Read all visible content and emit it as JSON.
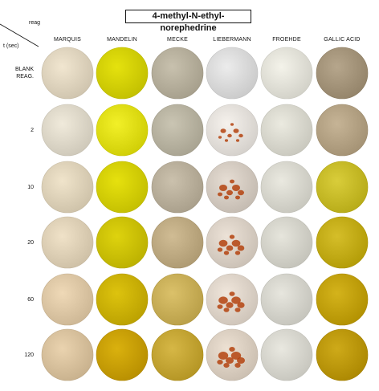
{
  "title": "4-methyl-N-ethyl-norephedrine",
  "corner": {
    "reagent_label": "reag",
    "time_label": "t (sec)"
  },
  "columns": [
    "MARQUIS",
    "MANDELIN",
    "MECKE",
    "LIEBERMANN",
    "FROEHDE",
    "GALLIC ACID"
  ],
  "rows": [
    {
      "label": "BLANK\nREAG.",
      "colors": [
        "#e3d8c2",
        "#d7d400",
        "#bab3a0",
        "#dedede",
        "#e6e5dc",
        "#a8987e"
      ]
    },
    {
      "label": "2",
      "colors": [
        "#e2dccd",
        "#e4e21a",
        "#bcb7a5",
        "#e8e4df",
        "#dddcd2",
        "#b8a688"
      ]
    },
    {
      "label": "10",
      "colors": [
        "#e2d6bd",
        "#d8d300",
        "#bdb39f",
        "#d8cfc5",
        "#dcdbd2",
        "#cbbf2c"
      ]
    },
    {
      "label": "20",
      "colors": [
        "#e2d4ba",
        "#d0c500",
        "#c2ae86",
        "#ded4c9",
        "#d8d7ce",
        "#c7b01b"
      ]
    },
    {
      "label": "60",
      "colors": [
        "#e1cba9",
        "#cfb500",
        "#cdb35c",
        "#e2d8cd",
        "#d9d8d0",
        "#c6a50d"
      ]
    },
    {
      "label": "120",
      "colors": [
        "#dcc5a1",
        "#cca300",
        "#c8a938",
        "#dfd3c5",
        "#dbdad2",
        "#c09c0b"
      ]
    }
  ],
  "stain_color": "#b4430f"
}
